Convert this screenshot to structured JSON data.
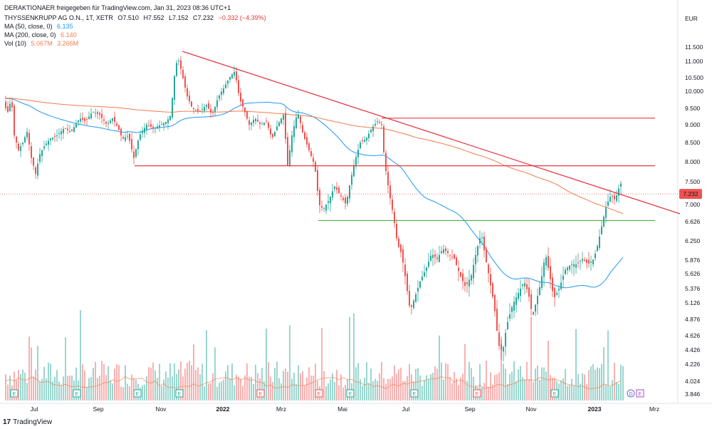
{
  "header": {
    "title_line": "DERAKTIONAER freigegeben für TradingView.com, Jan 31, 2023 08:36 UTC+1",
    "symbol": "THYSSENKRUPP AG O.N., 1T, XETR",
    "ohlc": {
      "o": "O7.510",
      "h": "H7.552",
      "l": "L7.152",
      "c": "C7.232",
      "chg": "−0.332 (−4.39%)"
    },
    "ma50": {
      "label": "MA (50, close, 0)",
      "value": "6.135"
    },
    "ma200": {
      "label": "MA (200, close, 0)",
      "value": "6.140"
    },
    "vol": {
      "label": "Vol (10)",
      "v1": "5.067M",
      "v2": "3.266M"
    }
  },
  "footer": {
    "brand": "TradingView",
    "logo": "17"
  },
  "colors": {
    "up": "#26a69a",
    "down": "#ef5350",
    "ma50": "#2196f3",
    "ma200": "#f57c4a",
    "trend": "#e53945",
    "support": "#4caf50",
    "price_tag": "#ef5350"
  },
  "chart_data": {
    "type": "candlestick",
    "currency": "EUR",
    "y_ticks": [
      "11.500",
      "11.000",
      "10.500",
      "10.000",
      "9.500",
      "9.000",
      "8.500",
      "8.000",
      "7.500",
      "7.000",
      "6.626",
      "6.250",
      "5.876",
      "5.626",
      "5.376",
      "5.126",
      "4.876",
      "4.626",
      "4.426",
      "4.226",
      "4.024",
      "3.846"
    ],
    "x_ticks": [
      "Jul",
      "Sep",
      "Nov",
      "2022",
      "Mrz",
      "Mai",
      "Jul",
      "Sep",
      "Nov",
      "2023",
      "Mrz"
    ],
    "last_price": "7.232",
    "event_markers": [
      "E",
      "E",
      "E",
      "E",
      "E",
      "E",
      "E",
      "E",
      "D",
      "E"
    ],
    "resistance_levels": [
      9.2,
      7.9
    ],
    "support_level": 6.65,
    "trendline": {
      "from": {
        "date": "2021-11",
        "price": 11.4
      },
      "to": {
        "date": "2023-03",
        "price": 6.75
      }
    },
    "price_anchors": [
      [
        0,
        9.8
      ],
      [
        6,
        9.7
      ],
      [
        10,
        9.3
      ],
      [
        16,
        9.8
      ],
      [
        20,
        8.7
      ],
      [
        26,
        8.3
      ],
      [
        32,
        8.5
      ],
      [
        38,
        8.8
      ],
      [
        44,
        8.1
      ],
      [
        50,
        7.7
      ],
      [
        56,
        8.2
      ],
      [
        62,
        8.4
      ],
      [
        70,
        8.6
      ],
      [
        80,
        8.7
      ],
      [
        90,
        8.9
      ],
      [
        100,
        8.8
      ],
      [
        112,
        9.2
      ],
      [
        120,
        9.1
      ],
      [
        130,
        9.4
      ],
      [
        140,
        9.3
      ],
      [
        150,
        9.0
      ],
      [
        158,
        9.2
      ],
      [
        166,
        8.9
      ],
      [
        172,
        8.6
      ],
      [
        180,
        8.7
      ],
      [
        188,
        8.1
      ],
      [
        196,
        8.7
      ],
      [
        206,
        9.0
      ],
      [
        216,
        8.9
      ],
      [
        226,
        9.0
      ],
      [
        234,
        9.1
      ],
      [
        240,
        9.3
      ],
      [
        246,
        10.8
      ],
      [
        250,
        11.1
      ],
      [
        256,
        10.6
      ],
      [
        262,
        9.9
      ],
      [
        270,
        9.5
      ],
      [
        280,
        9.4
      ],
      [
        290,
        9.6
      ],
      [
        298,
        9.3
      ],
      [
        306,
        9.8
      ],
      [
        314,
        10.1
      ],
      [
        322,
        10.5
      ],
      [
        330,
        10.7
      ],
      [
        336,
        9.8
      ],
      [
        342,
        9.5
      ],
      [
        350,
        9.0
      ],
      [
        358,
        9.2
      ],
      [
        366,
        9.0
      ],
      [
        374,
        9.1
      ],
      [
        382,
        8.6
      ],
      [
        390,
        9.0
      ],
      [
        398,
        9.3
      ],
      [
        404,
        7.9
      ],
      [
        410,
        8.7
      ],
      [
        418,
        9.4
      ],
      [
        426,
        8.7
      ],
      [
        434,
        8.3
      ],
      [
        442,
        7.9
      ],
      [
        448,
        7.0
      ],
      [
        454,
        6.9
      ],
      [
        462,
        7.1
      ],
      [
        470,
        7.4
      ],
      [
        478,
        7.2
      ],
      [
        486,
        7.0
      ],
      [
        492,
        7.5
      ],
      [
        498,
        8.0
      ],
      [
        506,
        8.5
      ],
      [
        514,
        8.6
      ],
      [
        522,
        8.9
      ],
      [
        530,
        9.1
      ],
      [
        536,
        9.0
      ],
      [
        540,
        8.0
      ],
      [
        546,
        7.3
      ],
      [
        552,
        6.8
      ],
      [
        558,
        6.2
      ],
      [
        564,
        6.0
      ],
      [
        570,
        5.5
      ],
      [
        576,
        5.0
      ],
      [
        582,
        5.2
      ],
      [
        590,
        5.5
      ],
      [
        598,
        5.7
      ],
      [
        606,
        6.0
      ],
      [
        614,
        5.9
      ],
      [
        622,
        6.1
      ],
      [
        630,
        6.0
      ],
      [
        638,
        5.9
      ],
      [
        646,
        5.6
      ],
      [
        654,
        5.4
      ],
      [
        662,
        5.6
      ],
      [
        670,
        6.1
      ],
      [
        676,
        6.4
      ],
      [
        682,
        5.9
      ],
      [
        688,
        5.5
      ],
      [
        694,
        5.1
      ],
      [
        700,
        4.5
      ],
      [
        706,
        4.4
      ],
      [
        712,
        4.8
      ],
      [
        720,
        5.1
      ],
      [
        728,
        5.3
      ],
      [
        736,
        5.5
      ],
      [
        742,
        5.3
      ],
      [
        748,
        4.9
      ],
      [
        754,
        5.2
      ],
      [
        760,
        5.5
      ],
      [
        766,
        6.0
      ],
      [
        772,
        5.6
      ],
      [
        778,
        5.2
      ],
      [
        786,
        5.4
      ],
      [
        794,
        5.7
      ],
      [
        802,
        5.8
      ],
      [
        810,
        5.8
      ],
      [
        818,
        5.9
      ],
      [
        826,
        5.8
      ],
      [
        834,
        5.9
      ],
      [
        840,
        6.2
      ],
      [
        846,
        6.6
      ],
      [
        852,
        7.0
      ],
      [
        858,
        7.2
      ],
      [
        864,
        7.1
      ],
      [
        870,
        7.4
      ],
      [
        875,
        7.55
      ]
    ]
  }
}
